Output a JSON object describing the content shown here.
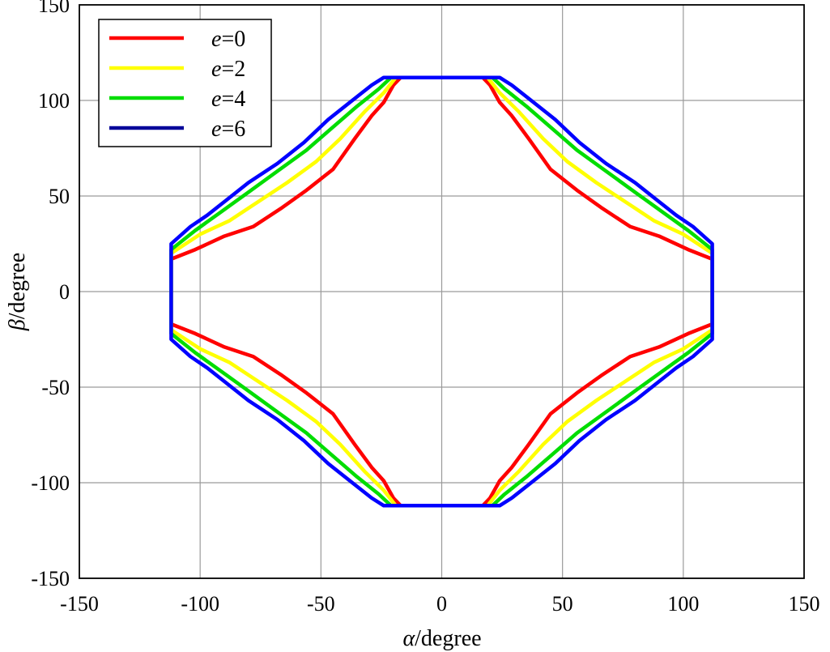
{
  "chart_data": {
    "type": "line",
    "xlabel": {
      "symbol": "α",
      "unit": "/degree"
    },
    "ylabel": {
      "symbol": "β",
      "unit": "/degree"
    },
    "xlim": [
      -150,
      150
    ],
    "ylim": [
      -150,
      150
    ],
    "xticks": [
      -150,
      -100,
      -50,
      0,
      50,
      100,
      150
    ],
    "yticks": [
      -150,
      -100,
      -50,
      0,
      50,
      100,
      150
    ],
    "xtick_labels": [
      "-150",
      "-100",
      "-50",
      "0",
      "50",
      "100",
      "150"
    ],
    "ytick_labels": [
      "-150",
      "-100",
      "-50",
      "0",
      "50",
      "100",
      "150"
    ],
    "grid": true,
    "legend_position": "top-left",
    "symmetry": "each series is drawn as its upper-right quadrant polyline mirrored across both axes",
    "series": [
      {
        "name": "e=0",
        "legend_var": "e",
        "legend_value": "=0",
        "color": "#ff0000",
        "quadrant_points": [
          [
            17,
            112
          ],
          [
            20,
            108
          ],
          [
            24,
            99
          ],
          [
            29,
            92
          ],
          [
            36,
            80
          ],
          [
            45,
            64
          ],
          [
            56,
            53
          ],
          [
            66,
            44
          ],
          [
            78,
            34
          ],
          [
            90,
            29
          ],
          [
            102,
            22
          ],
          [
            112,
            17
          ]
        ]
      },
      {
        "name": "e=2",
        "legend_var": "e",
        "legend_value": "=2",
        "color": "#ffff00",
        "quadrant_points": [
          [
            19,
            112
          ],
          [
            24,
            104
          ],
          [
            32,
            94
          ],
          [
            42,
            80
          ],
          [
            52,
            68
          ],
          [
            64,
            57
          ],
          [
            76,
            47
          ],
          [
            88,
            37
          ],
          [
            100,
            30
          ],
          [
            112,
            20
          ]
        ]
      },
      {
        "name": "e=4",
        "legend_var": "e",
        "legend_value": "=4",
        "color": "#00dd00",
        "quadrant_points": [
          [
            21,
            112
          ],
          [
            26,
            106
          ],
          [
            35,
            97
          ],
          [
            46,
            85
          ],
          [
            56,
            74
          ],
          [
            68,
            63
          ],
          [
            80,
            52
          ],
          [
            91,
            42
          ],
          [
            102,
            32
          ],
          [
            112,
            22
          ]
        ]
      },
      {
        "name": "e=6",
        "legend_var": "e",
        "legend_value": "=6",
        "color": "#0000ff",
        "quadrant_points": [
          [
            24,
            112
          ],
          [
            29,
            108
          ],
          [
            36,
            101
          ],
          [
            47,
            90
          ],
          [
            57,
            78
          ],
          [
            68,
            67
          ],
          [
            80,
            57
          ],
          [
            90,
            47
          ],
          [
            97,
            40
          ],
          [
            104,
            34
          ],
          [
            112,
            25
          ],
          [
            112,
            0
          ]
        ]
      }
    ],
    "legend_line_colors": [
      "#ff0000",
      "#ffff00",
      "#00dd00",
      "#000099"
    ]
  }
}
